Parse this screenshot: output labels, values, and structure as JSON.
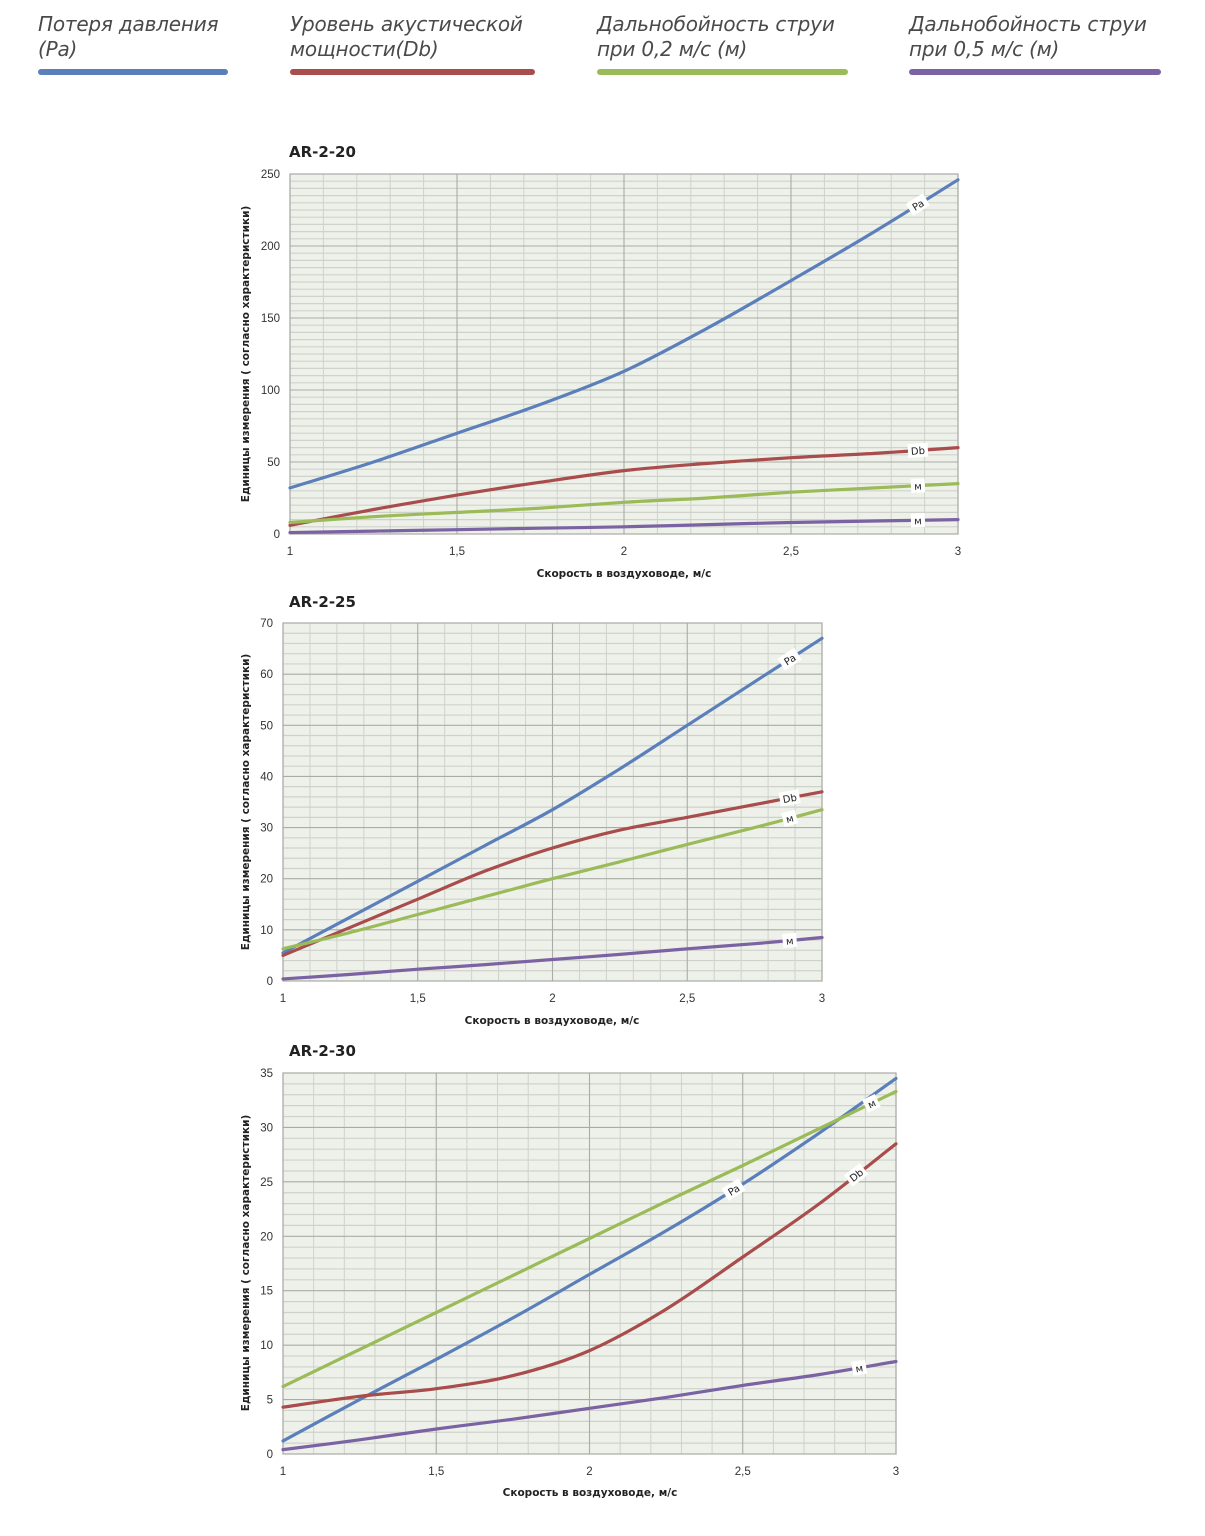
{
  "legend": [
    {
      "text": "Потеря давления\n(Pa)",
      "color": "#5b7fba"
    },
    {
      "text": "Уровень акустической\nмощности(Db)",
      "color": "#a84c4c"
    },
    {
      "text": "Дальнобойность струи\nпри 0,2 м/с (м)",
      "color": "#9bbb59"
    },
    {
      "text": "Дальнобойность струи\nпри 0,5 м/с (м)",
      "color": "#7a62a3"
    }
  ],
  "colors": {
    "plot_bg": "#eef1ea",
    "grid_major": "#a9aba6",
    "grid_minor": "#cfd2cb"
  },
  "chart_data": [
    {
      "type": "line",
      "title": "AR-2-20",
      "xlabel": "Скорость в воздуховоде, м/с",
      "ylabel": "Единицы измерения ( согласно характеристики)",
      "xlim": [
        1,
        3
      ],
      "ylim": [
        0,
        250
      ],
      "x_ticks": [
        "1",
        "1,5",
        "2",
        "2,5",
        "3"
      ],
      "y_ticks": [
        "0",
        "50",
        "100",
        "150",
        "200",
        "250"
      ],
      "y_major_step": 50,
      "y_minor_step": 5,
      "grid": true,
      "x": [
        1,
        1.25,
        1.5,
        1.75,
        2,
        2.25,
        2.5,
        2.75,
        3
      ],
      "series": [
        {
          "name": "Pa",
          "label": "Pa",
          "color": "#5b7fba",
          "values": [
            32,
            50,
            70,
            90,
            113,
            143,
            176,
            210,
            246
          ]
        },
        {
          "name": "Db",
          "label": "Db",
          "color": "#a84c4c",
          "values": [
            6,
            17,
            27,
            36,
            44,
            49,
            53,
            56,
            60
          ]
        },
        {
          "name": "м (0,2 м/с)",
          "label": "м",
          "color": "#9bbb59",
          "values": [
            8,
            12,
            15,
            18,
            22,
            25,
            29,
            32,
            35
          ]
        },
        {
          "name": "м (0,5 м/с)",
          "label": "м",
          "color": "#7a62a3",
          "values": [
            1,
            2,
            3,
            4,
            5,
            6.5,
            8,
            9,
            10
          ]
        }
      ]
    },
    {
      "type": "line",
      "title": "AR-2-25",
      "xlabel": "Скорость в воздуховоде, м/с",
      "ylabel": "Единицы измерения ( согласно характеристики)",
      "xlim": [
        1,
        3
      ],
      "ylim": [
        0,
        70
      ],
      "x_ticks": [
        "1",
        "1,5",
        "2",
        "2,5",
        "3"
      ],
      "y_ticks": [
        "0",
        "10",
        "20",
        "30",
        "40",
        "50",
        "60",
        "70"
      ],
      "y_major_step": 10,
      "y_minor_step": 2,
      "grid": true,
      "x": [
        1,
        1.25,
        1.5,
        1.75,
        2,
        2.25,
        2.5,
        2.75,
        3
      ],
      "series": [
        {
          "name": "Pa",
          "label": "Pa",
          "color": "#5b7fba",
          "values": [
            5.5,
            12.5,
            19.5,
            26.5,
            33.5,
            41.5,
            50,
            58.5,
            67
          ]
        },
        {
          "name": "Db",
          "label": "Db",
          "color": "#a84c4c",
          "values": [
            5,
            10.5,
            16,
            21.5,
            26,
            29.5,
            32,
            34.5,
            37
          ]
        },
        {
          "name": "м (0,2 м/с)",
          "label": "м",
          "color": "#9bbb59",
          "values": [
            6.3,
            9.5,
            13,
            16.5,
            20,
            23.3,
            26.7,
            30,
            33.5
          ]
        },
        {
          "name": "м (0,5 м/с)",
          "label": "м",
          "color": "#7a62a3",
          "values": [
            0.4,
            1.3,
            2.3,
            3.2,
            4.2,
            5.2,
            6.3,
            7.3,
            8.5
          ]
        }
      ]
    },
    {
      "type": "line",
      "title": "AR-2-30",
      "xlabel": "Скорость в воздуховоде, м/с",
      "ylabel": "Единицы измерения ( согласно характеристики)",
      "xlim": [
        1,
        3
      ],
      "ylim": [
        0,
        35
      ],
      "x_ticks": [
        "1",
        "1,5",
        "2",
        "2,5",
        "3"
      ],
      "y_ticks": [
        "0",
        "5",
        "10",
        "15",
        "20",
        "25",
        "30",
        "35"
      ],
      "y_major_step": 5,
      "y_minor_step": 1,
      "grid": true,
      "x": [
        1,
        1.25,
        1.5,
        1.75,
        2,
        2.25,
        2.5,
        2.75,
        3
      ],
      "series": [
        {
          "name": "Pa",
          "label": "Pa",
          "color": "#5b7fba",
          "values": [
            1.2,
            5,
            8.7,
            12.5,
            16.5,
            20.5,
            24.8,
            29.5,
            34.5
          ]
        },
        {
          "name": "Db",
          "label": "Db",
          "color": "#a84c4c",
          "values": [
            4.3,
            5.3,
            6,
            7.2,
            9.5,
            13.3,
            18.1,
            23,
            28.5
          ]
        },
        {
          "name": "м (0,2 м/с)",
          "label": "м",
          "color": "#9bbb59",
          "values": [
            6.2,
            9.6,
            13,
            16.4,
            19.8,
            23.2,
            26.5,
            29.9,
            33.3
          ]
        },
        {
          "name": "м (0,5 м/с)",
          "label": "м",
          "color": "#7a62a3",
          "values": [
            0.4,
            1.3,
            2.3,
            3.2,
            4.2,
            5.2,
            6.3,
            7.3,
            8.5
          ]
        }
      ]
    }
  ]
}
